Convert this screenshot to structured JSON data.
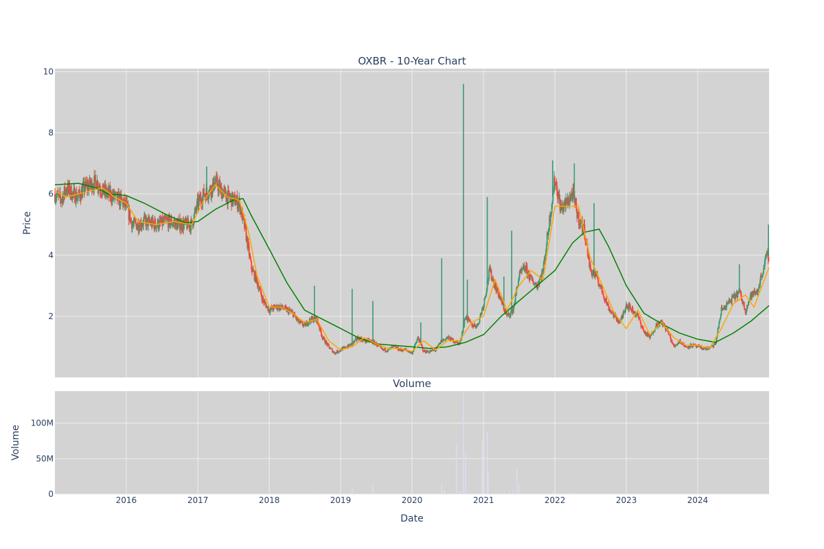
{
  "chart_data": [
    {
      "type": "candlestick",
      "title": "OXBR - 10-Year Chart",
      "ylabel": "Price",
      "ylim": [
        0,
        10.1
      ],
      "yticks": [
        2,
        4,
        6,
        8,
        10
      ],
      "ytick_labels": [
        "2",
        "4",
        "6",
        "8",
        "10"
      ],
      "xlim": [
        "2015-01-01",
        "2024-12-31"
      ],
      "xticks": [
        "2016-01-01",
        "2017-01-01",
        "2018-01-01",
        "2019-01-01",
        "2020-01-01",
        "2021-01-01",
        "2022-01-01",
        "2023-01-01",
        "2024-01-01"
      ],
      "grid": true,
      "colors": {
        "plot_bg": "#d3d3d3",
        "grid": "#eeeeee",
        "up": "#3d9970",
        "down": "#ff4136",
        "ma_short": "#ffa500",
        "ma_long": "#008000"
      },
      "close_path": [
        [
          "2015-01-01",
          6.0
        ],
        [
          "2015-02-01",
          5.8
        ],
        [
          "2015-03-01",
          6.2
        ],
        [
          "2015-04-01",
          6.0
        ],
        [
          "2015-05-01",
          5.9
        ],
        [
          "2015-06-01",
          6.2
        ],
        [
          "2015-07-01",
          6.3
        ],
        [
          "2015-08-01",
          6.4
        ],
        [
          "2015-09-01",
          6.1
        ],
        [
          "2015-10-01",
          6.0
        ],
        [
          "2015-11-01",
          5.9
        ],
        [
          "2015-12-01",
          5.8
        ],
        [
          "2016-01-01",
          5.6
        ],
        [
          "2016-02-01",
          5.0
        ],
        [
          "2016-03-01",
          5.0
        ],
        [
          "2016-04-01",
          5.1
        ],
        [
          "2016-06-01",
          5.0
        ],
        [
          "2016-08-01",
          5.1
        ],
        [
          "2016-10-01",
          5.0
        ],
        [
          "2016-12-01",
          5.0
        ],
        [
          "2017-01-01",
          5.7
        ],
        [
          "2017-02-01",
          6.0
        ],
        [
          "2017-03-01",
          6.1
        ],
        [
          "2017-04-01",
          6.4
        ],
        [
          "2017-05-01",
          6.1
        ],
        [
          "2017-06-01",
          5.9
        ],
        [
          "2017-07-01",
          5.8
        ],
        [
          "2017-08-01",
          5.7
        ],
        [
          "2017-09-01",
          4.8
        ],
        [
          "2017-10-01",
          3.6
        ],
        [
          "2017-11-01",
          3.1
        ],
        [
          "2017-12-01",
          2.5
        ],
        [
          "2018-01-01",
          2.2
        ],
        [
          "2018-02-01",
          2.3
        ],
        [
          "2018-03-01",
          2.3
        ],
        [
          "2018-04-01",
          2.2
        ],
        [
          "2018-05-01",
          2.1
        ],
        [
          "2018-06-01",
          1.8
        ],
        [
          "2018-07-01",
          1.7
        ],
        [
          "2018-08-01",
          1.9
        ],
        [
          "2018-09-01",
          1.9
        ],
        [
          "2018-10-01",
          1.3
        ],
        [
          "2018-11-01",
          1.0
        ],
        [
          "2018-12-01",
          0.8
        ],
        [
          "2019-01-01",
          0.9
        ],
        [
          "2019-02-01",
          1.0
        ],
        [
          "2019-03-01",
          1.1
        ],
        [
          "2019-04-01",
          1.3
        ],
        [
          "2019-05-01",
          1.2
        ],
        [
          "2019-06-01",
          1.2
        ],
        [
          "2019-07-01",
          1.1
        ],
        [
          "2019-08-01",
          0.9
        ],
        [
          "2019-09-01",
          0.9
        ],
        [
          "2019-10-01",
          1.0
        ],
        [
          "2019-11-01",
          0.9
        ],
        [
          "2019-12-01",
          0.9
        ],
        [
          "2020-01-01",
          0.8
        ],
        [
          "2020-02-01",
          1.3
        ],
        [
          "2020-03-01",
          0.85
        ],
        [
          "2020-04-01",
          0.85
        ],
        [
          "2020-05-01",
          0.9
        ],
        [
          "2020-06-01",
          1.2
        ],
        [
          "2020-07-01",
          1.3
        ],
        [
          "2020-08-01",
          1.2
        ],
        [
          "2020-09-01",
          1.1
        ],
        [
          "2020-10-01",
          2.0
        ],
        [
          "2020-11-01",
          1.7
        ],
        [
          "2020-12-01",
          1.7
        ],
        [
          "2021-01-01",
          2.4
        ],
        [
          "2021-02-01",
          3.5
        ],
        [
          "2021-03-01",
          3.0
        ],
        [
          "2021-04-01",
          2.5
        ],
        [
          "2021-05-01",
          2.0
        ],
        [
          "2021-06-01",
          2.2
        ],
        [
          "2021-07-01",
          3.3
        ],
        [
          "2021-08-01",
          3.6
        ],
        [
          "2021-09-01",
          3.2
        ],
        [
          "2021-10-01",
          3.0
        ],
        [
          "2021-11-01",
          3.5
        ],
        [
          "2021-12-01",
          5.0
        ],
        [
          "2022-01-01",
          6.5
        ],
        [
          "2022-02-01",
          5.5
        ],
        [
          "2022-03-01",
          5.7
        ],
        [
          "2022-04-01",
          6.0
        ],
        [
          "2022-05-01",
          5.2
        ],
        [
          "2022-06-01",
          4.8
        ],
        [
          "2022-07-01",
          3.5
        ],
        [
          "2022-08-01",
          3.3
        ],
        [
          "2022-09-01",
          2.8
        ],
        [
          "2022-10-01",
          2.3
        ],
        [
          "2022-11-01",
          2.0
        ],
        [
          "2022-12-01",
          1.8
        ],
        [
          "2023-01-01",
          2.4
        ],
        [
          "2023-02-01",
          2.2
        ],
        [
          "2023-03-01",
          2.0
        ],
        [
          "2023-04-01",
          1.5
        ],
        [
          "2023-05-01",
          1.3
        ],
        [
          "2023-06-01",
          1.7
        ],
        [
          "2023-07-01",
          1.8
        ],
        [
          "2023-08-01",
          1.5
        ],
        [
          "2023-09-01",
          1.0
        ],
        [
          "2023-10-01",
          1.2
        ],
        [
          "2023-11-01",
          1.0
        ],
        [
          "2023-12-01",
          1.05
        ],
        [
          "2024-01-01",
          1.0
        ],
        [
          "2024-02-01",
          0.95
        ],
        [
          "2024-03-01",
          0.95
        ],
        [
          "2024-04-01",
          1.1
        ],
        [
          "2024-05-01",
          2.2
        ],
        [
          "2024-06-01",
          2.4
        ],
        [
          "2024-07-01",
          2.6
        ],
        [
          "2024-08-01",
          2.8
        ],
        [
          "2024-09-01",
          2.2
        ],
        [
          "2024-10-01",
          2.7
        ],
        [
          "2024-11-01",
          2.8
        ],
        [
          "2024-12-15",
          3.9
        ],
        [
          "2024-12-31",
          4.0
        ]
      ],
      "spikes": [
        [
          "2017-02-15",
          6.9
        ],
        [
          "2018-08-20",
          3.0
        ],
        [
          "2019-03-01",
          2.9
        ],
        [
          "2019-06-15",
          2.5
        ],
        [
          "2020-02-15",
          1.8
        ],
        [
          "2020-06-01",
          3.9
        ],
        [
          "2020-09-20",
          9.6
        ],
        [
          "2020-10-10",
          3.2
        ],
        [
          "2021-01-20",
          5.9
        ],
        [
          "2021-04-15",
          3.3
        ],
        [
          "2021-05-25",
          4.8
        ],
        [
          "2021-12-20",
          7.1
        ],
        [
          "2022-04-10",
          7.0
        ],
        [
          "2022-07-20",
          5.7
        ],
        [
          "2024-08-01",
          3.7
        ],
        [
          "2024-12-28",
          5.0
        ]
      ],
      "ma_short": [
        [
          "2015-01-01",
          6.1
        ],
        [
          "2015-03-01",
          5.9
        ],
        [
          "2015-05-01",
          6.0
        ],
        [
          "2015-07-01",
          6.1
        ],
        [
          "2015-09-01",
          6.2
        ],
        [
          "2015-11-01",
          5.9
        ],
        [
          "2016-01-01",
          5.7
        ],
        [
          "2016-03-01",
          5.1
        ],
        [
          "2016-06-01",
          5.0
        ],
        [
          "2016-09-01",
          5.1
        ],
        [
          "2016-12-01",
          5.0
        ],
        [
          "2017-02-01",
          5.8
        ],
        [
          "2017-04-01",
          6.3
        ],
        [
          "2017-06-01",
          5.9
        ],
        [
          "2017-08-01",
          5.8
        ],
        [
          "2017-09-15",
          4.8
        ],
        [
          "2017-11-01",
          3.3
        ],
        [
          "2018-01-01",
          2.3
        ],
        [
          "2018-03-01",
          2.3
        ],
        [
          "2018-05-01",
          2.1
        ],
        [
          "2018-07-01",
          1.8
        ],
        [
          "2018-09-01",
          1.9
        ],
        [
          "2018-11-01",
          1.2
        ],
        [
          "2019-01-01",
          0.9
        ],
        [
          "2019-03-01",
          1.0
        ],
        [
          "2019-05-01",
          1.3
        ],
        [
          "2019-07-01",
          1.1
        ],
        [
          "2019-09-01",
          0.95
        ],
        [
          "2019-11-01",
          0.95
        ],
        [
          "2020-01-01",
          0.85
        ],
        [
          "2020-03-01",
          1.2
        ],
        [
          "2020-05-01",
          0.9
        ],
        [
          "2020-07-01",
          1.2
        ],
        [
          "2020-09-01",
          1.2
        ],
        [
          "2020-11-01",
          1.8
        ],
        [
          "2021-01-01",
          2.0
        ],
        [
          "2021-03-01",
          3.2
        ],
        [
          "2021-05-01",
          2.2
        ],
        [
          "2021-07-01",
          3.0
        ],
        [
          "2021-09-01",
          3.5
        ],
        [
          "2021-11-01",
          3.2
        ],
        [
          "2022-01-01",
          5.6
        ],
        [
          "2022-03-01",
          5.6
        ],
        [
          "2022-05-01",
          5.6
        ],
        [
          "2022-07-01",
          3.9
        ],
        [
          "2022-09-01",
          3.0
        ],
        [
          "2022-11-01",
          2.1
        ],
        [
          "2023-01-01",
          1.6
        ],
        [
          "2023-03-01",
          2.2
        ],
        [
          "2023-05-01",
          1.4
        ],
        [
          "2023-07-01",
          1.8
        ],
        [
          "2023-09-01",
          1.3
        ],
        [
          "2023-11-01",
          1.05
        ],
        [
          "2024-01-01",
          1.05
        ],
        [
          "2024-03-01",
          0.95
        ],
        [
          "2024-05-01",
          1.6
        ],
        [
          "2024-07-01",
          2.4
        ],
        [
          "2024-09-01",
          2.7
        ],
        [
          "2024-10-15",
          2.3
        ],
        [
          "2024-12-31",
          3.6
        ]
      ],
      "ma_long": [
        [
          "2015-01-01",
          6.3
        ],
        [
          "2015-05-01",
          6.35
        ],
        [
          "2015-08-01",
          6.2
        ],
        [
          "2015-10-01",
          6.0
        ],
        [
          "2016-01-01",
          5.95
        ],
        [
          "2016-04-01",
          5.7
        ],
        [
          "2016-08-01",
          5.3
        ],
        [
          "2016-11-01",
          5.05
        ],
        [
          "2017-01-01",
          5.1
        ],
        [
          "2017-04-01",
          5.5
        ],
        [
          "2017-07-01",
          5.8
        ],
        [
          "2017-08-20",
          5.85
        ],
        [
          "2017-10-01",
          5.3
        ],
        [
          "2018-01-01",
          4.2
        ],
        [
          "2018-04-01",
          3.1
        ],
        [
          "2018-07-01",
          2.2
        ],
        [
          "2018-10-01",
          1.9
        ],
        [
          "2019-01-01",
          1.6
        ],
        [
          "2019-04-01",
          1.3
        ],
        [
          "2019-07-01",
          1.1
        ],
        [
          "2019-10-01",
          1.05
        ],
        [
          "2020-01-01",
          1.0
        ],
        [
          "2020-04-01",
          0.95
        ],
        [
          "2020-07-01",
          1.0
        ],
        [
          "2020-10-01",
          1.15
        ],
        [
          "2021-01-01",
          1.4
        ],
        [
          "2021-04-01",
          2.0
        ],
        [
          "2021-07-01",
          2.5
        ],
        [
          "2021-10-01",
          3.0
        ],
        [
          "2022-01-01",
          3.5
        ],
        [
          "2022-04-01",
          4.4
        ],
        [
          "2022-06-01",
          4.75
        ],
        [
          "2022-08-15",
          4.85
        ],
        [
          "2022-10-01",
          4.3
        ],
        [
          "2023-01-01",
          3.0
        ],
        [
          "2023-04-01",
          2.1
        ],
        [
          "2023-07-01",
          1.75
        ],
        [
          "2023-10-01",
          1.45
        ],
        [
          "2024-01-01",
          1.25
        ],
        [
          "2024-04-01",
          1.15
        ],
        [
          "2024-07-01",
          1.45
        ],
        [
          "2024-10-01",
          1.85
        ],
        [
          "2024-12-31",
          2.35
        ]
      ]
    },
    {
      "type": "bar",
      "title": "Volume",
      "xlabel": "Date",
      "ylabel": "Volume",
      "ylim": [
        0,
        145
      ],
      "yticks": [
        0,
        50,
        100
      ],
      "ytick_labels": [
        "0",
        "50M",
        "100M"
      ],
      "value_unit": "millions",
      "xlim": [
        "2015-01-01",
        "2024-12-31"
      ],
      "xticks": [
        "2016-01-01",
        "2017-01-01",
        "2018-01-01",
        "2019-01-01",
        "2020-01-01",
        "2021-01-01",
        "2022-01-01",
        "2023-01-01",
        "2024-01-01"
      ],
      "xtick_labels": [
        "2016",
        "2017",
        "2018",
        "2019",
        "2020",
        "2021",
        "2022",
        "2023",
        "2024"
      ],
      "grid": true,
      "colors": {
        "plot_bg": "#d3d3d3",
        "grid": "#eeeeee",
        "bar": "#dcdcf0"
      },
      "bars": [
        [
          "2018-08-20",
          2
        ],
        [
          "2019-03-01",
          8
        ],
        [
          "2019-06-15",
          12
        ],
        [
          "2020-06-01",
          15
        ],
        [
          "2020-06-15",
          5
        ],
        [
          "2020-08-15",
          70
        ],
        [
          "2020-09-01",
          4
        ],
        [
          "2020-09-20",
          143
        ],
        [
          "2020-10-01",
          58
        ],
        [
          "2020-12-25",
          76
        ],
        [
          "2021-01-20",
          88
        ],
        [
          "2021-01-25",
          30
        ],
        [
          "2021-04-15",
          3
        ],
        [
          "2021-05-15",
          5
        ],
        [
          "2021-06-01",
          7
        ],
        [
          "2021-06-20",
          36
        ],
        [
          "2021-07-01",
          15
        ],
        [
          "2021-12-20",
          4
        ],
        [
          "2022-04-10",
          3
        ]
      ]
    }
  ]
}
